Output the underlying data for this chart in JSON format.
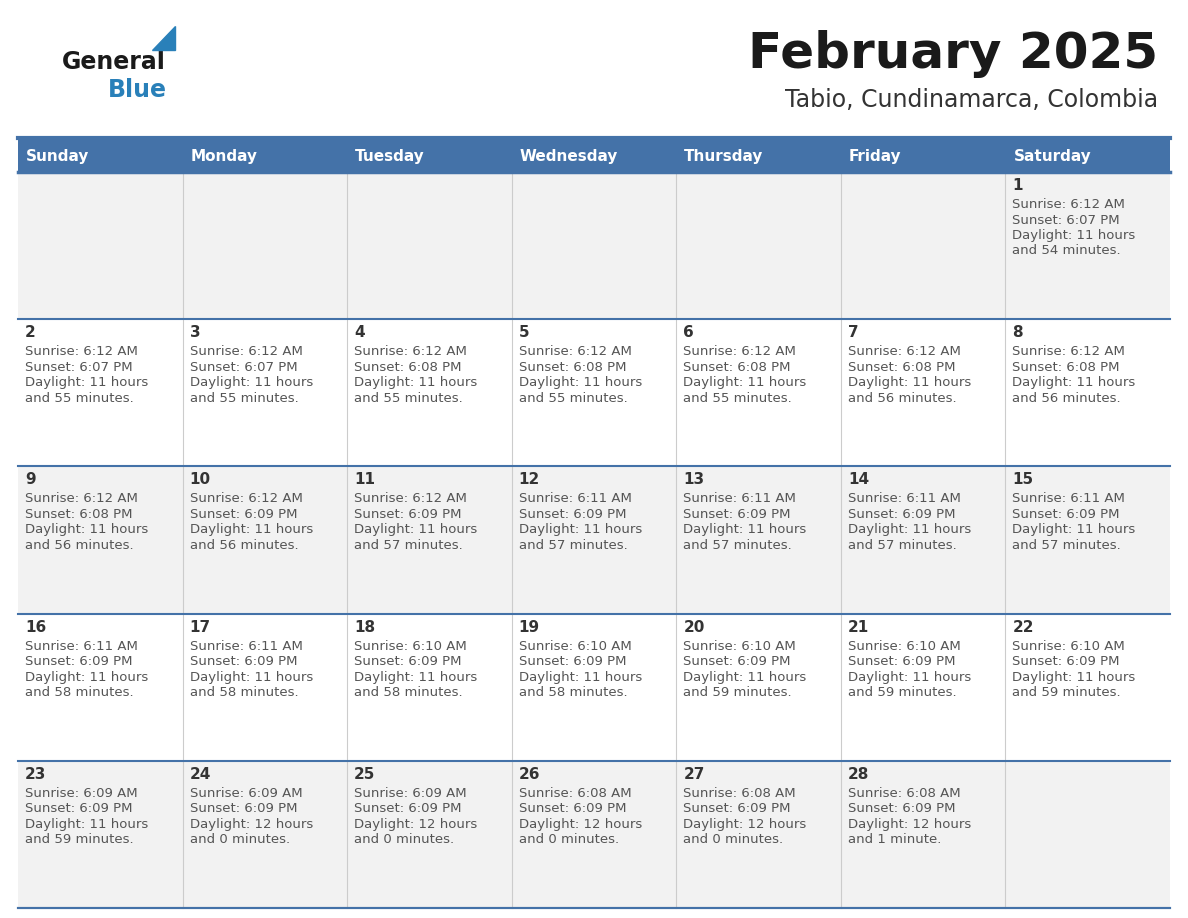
{
  "title": "February 2025",
  "subtitle": "Tabio, Cundinamarca, Colombia",
  "header_bg_color": "#4472a8",
  "header_text_color": "#ffffff",
  "day_names": [
    "Sunday",
    "Monday",
    "Tuesday",
    "Wednesday",
    "Thursday",
    "Friday",
    "Saturday"
  ],
  "row_bg_odd": "#f2f2f2",
  "row_bg_even": "#ffffff",
  "border_color": "#4472a8",
  "day_num_color": "#333333",
  "cell_text_color": "#555555",
  "calendar_data": [
    [
      null,
      null,
      null,
      null,
      null,
      null,
      {
        "day": "1",
        "sunrise": "6:12 AM",
        "sunset": "6:07 PM",
        "daylight": "11 hours",
        "daylight2": "and 54 minutes."
      }
    ],
    [
      {
        "day": "2",
        "sunrise": "6:12 AM",
        "sunset": "6:07 PM",
        "daylight": "11 hours",
        "daylight2": "and 55 minutes."
      },
      {
        "day": "3",
        "sunrise": "6:12 AM",
        "sunset": "6:07 PM",
        "daylight": "11 hours",
        "daylight2": "and 55 minutes."
      },
      {
        "day": "4",
        "sunrise": "6:12 AM",
        "sunset": "6:08 PM",
        "daylight": "11 hours",
        "daylight2": "and 55 minutes."
      },
      {
        "day": "5",
        "sunrise": "6:12 AM",
        "sunset": "6:08 PM",
        "daylight": "11 hours",
        "daylight2": "and 55 minutes."
      },
      {
        "day": "6",
        "sunrise": "6:12 AM",
        "sunset": "6:08 PM",
        "daylight": "11 hours",
        "daylight2": "and 55 minutes."
      },
      {
        "day": "7",
        "sunrise": "6:12 AM",
        "sunset": "6:08 PM",
        "daylight": "11 hours",
        "daylight2": "and 56 minutes."
      },
      {
        "day": "8",
        "sunrise": "6:12 AM",
        "sunset": "6:08 PM",
        "daylight": "11 hours",
        "daylight2": "and 56 minutes."
      }
    ],
    [
      {
        "day": "9",
        "sunrise": "6:12 AM",
        "sunset": "6:08 PM",
        "daylight": "11 hours",
        "daylight2": "and 56 minutes."
      },
      {
        "day": "10",
        "sunrise": "6:12 AM",
        "sunset": "6:09 PM",
        "daylight": "11 hours",
        "daylight2": "and 56 minutes."
      },
      {
        "day": "11",
        "sunrise": "6:12 AM",
        "sunset": "6:09 PM",
        "daylight": "11 hours",
        "daylight2": "and 57 minutes."
      },
      {
        "day": "12",
        "sunrise": "6:11 AM",
        "sunset": "6:09 PM",
        "daylight": "11 hours",
        "daylight2": "and 57 minutes."
      },
      {
        "day": "13",
        "sunrise": "6:11 AM",
        "sunset": "6:09 PM",
        "daylight": "11 hours",
        "daylight2": "and 57 minutes."
      },
      {
        "day": "14",
        "sunrise": "6:11 AM",
        "sunset": "6:09 PM",
        "daylight": "11 hours",
        "daylight2": "and 57 minutes."
      },
      {
        "day": "15",
        "sunrise": "6:11 AM",
        "sunset": "6:09 PM",
        "daylight": "11 hours",
        "daylight2": "and 57 minutes."
      }
    ],
    [
      {
        "day": "16",
        "sunrise": "6:11 AM",
        "sunset": "6:09 PM",
        "daylight": "11 hours",
        "daylight2": "and 58 minutes."
      },
      {
        "day": "17",
        "sunrise": "6:11 AM",
        "sunset": "6:09 PM",
        "daylight": "11 hours",
        "daylight2": "and 58 minutes."
      },
      {
        "day": "18",
        "sunrise": "6:10 AM",
        "sunset": "6:09 PM",
        "daylight": "11 hours",
        "daylight2": "and 58 minutes."
      },
      {
        "day": "19",
        "sunrise": "6:10 AM",
        "sunset": "6:09 PM",
        "daylight": "11 hours",
        "daylight2": "and 58 minutes."
      },
      {
        "day": "20",
        "sunrise": "6:10 AM",
        "sunset": "6:09 PM",
        "daylight": "11 hours",
        "daylight2": "and 59 minutes."
      },
      {
        "day": "21",
        "sunrise": "6:10 AM",
        "sunset": "6:09 PM",
        "daylight": "11 hours",
        "daylight2": "and 59 minutes."
      },
      {
        "day": "22",
        "sunrise": "6:10 AM",
        "sunset": "6:09 PM",
        "daylight": "11 hours",
        "daylight2": "and 59 minutes."
      }
    ],
    [
      {
        "day": "23",
        "sunrise": "6:09 AM",
        "sunset": "6:09 PM",
        "daylight": "11 hours",
        "daylight2": "and 59 minutes."
      },
      {
        "day": "24",
        "sunrise": "6:09 AM",
        "sunset": "6:09 PM",
        "daylight": "12 hours",
        "daylight2": "and 0 minutes."
      },
      {
        "day": "25",
        "sunrise": "6:09 AM",
        "sunset": "6:09 PM",
        "daylight": "12 hours",
        "daylight2": "and 0 minutes."
      },
      {
        "day": "26",
        "sunrise": "6:08 AM",
        "sunset": "6:09 PM",
        "daylight": "12 hours",
        "daylight2": "and 0 minutes."
      },
      {
        "day": "27",
        "sunrise": "6:08 AM",
        "sunset": "6:09 PM",
        "daylight": "12 hours",
        "daylight2": "and 0 minutes."
      },
      {
        "day": "28",
        "sunrise": "6:08 AM",
        "sunset": "6:09 PM",
        "daylight": "12 hours",
        "daylight2": "and 1 minute."
      },
      null
    ]
  ],
  "fig_width": 11.88,
  "fig_height": 9.18,
  "dpi": 100
}
